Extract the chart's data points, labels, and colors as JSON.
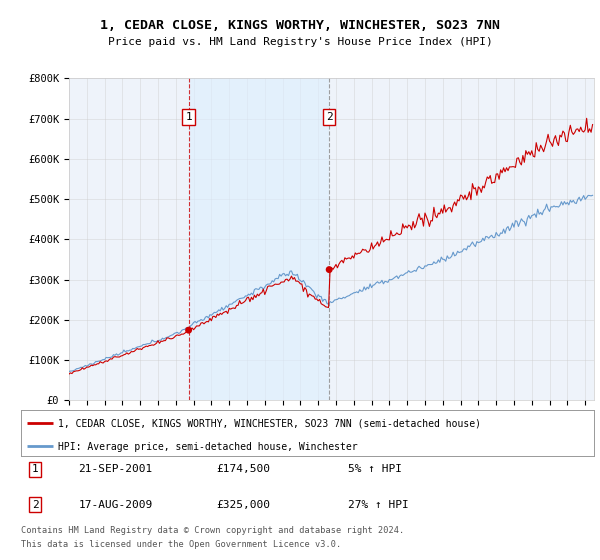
{
  "title": "1, CEDAR CLOSE, KINGS WORTHY, WINCHESTER, SO23 7NN",
  "subtitle": "Price paid vs. HM Land Registry's House Price Index (HPI)",
  "ylim": [
    0,
    800000
  ],
  "yticks": [
    0,
    100000,
    200000,
    300000,
    400000,
    500000,
    600000,
    700000,
    800000
  ],
  "ytick_labels": [
    "£0",
    "£100K",
    "£200K",
    "£300K",
    "£400K",
    "£500K",
    "£600K",
    "£700K",
    "£800K"
  ],
  "xlim_start": 1995.0,
  "xlim_end": 2024.5,
  "sale1_date": 2001.72,
  "sale1_price": 174500,
  "sale2_date": 2009.62,
  "sale2_price": 325000,
  "sale1_text": "21-SEP-2001",
  "sale1_price_text": "£174,500",
  "sale1_hpi_text": "5% ↑ HPI",
  "sale2_text": "17-AUG-2009",
  "sale2_price_text": "£325,000",
  "sale2_hpi_text": "27% ↑ HPI",
  "line_color_price": "#cc0000",
  "line_color_hpi": "#6699cc",
  "fill_color": "#ddeeff",
  "legend_label1": "1, CEDAR CLOSE, KINGS WORTHY, WINCHESTER, SO23 7NN (semi-detached house)",
  "legend_label2": "HPI: Average price, semi-detached house, Winchester",
  "footer1": "Contains HM Land Registry data © Crown copyright and database right 2024.",
  "footer2": "This data is licensed under the Open Government Licence v3.0.",
  "bg_color": "#ffffff",
  "plot_bg_color": "#eef3fa",
  "grid_color": "#cccccc"
}
